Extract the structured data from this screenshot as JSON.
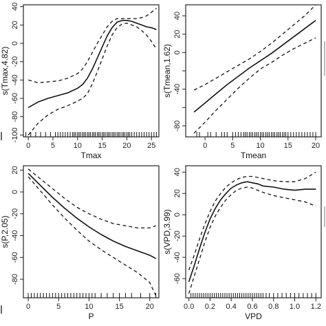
{
  "chart_data": [
    {
      "type": "line",
      "xlabel": "Tmax",
      "ylabel": "s(Tmax,4.82)",
      "xlim": [
        -1,
        26.5
      ],
      "ylim": [
        -102,
        42
      ],
      "xticks": [
        0,
        5,
        10,
        15,
        20,
        25
      ],
      "yticks": [
        -100,
        -80,
        -60,
        -40,
        -20,
        0,
        20,
        40
      ],
      "yticks_labeled": [
        -100,
        -80,
        -60,
        -40,
        -20,
        0,
        20,
        40
      ],
      "x": [
        0,
        2,
        4,
        6,
        8,
        10,
        11,
        12,
        13,
        14,
        15,
        16,
        17,
        18,
        19,
        20,
        21,
        22,
        23,
        24,
        25,
        26
      ],
      "series": [
        {
          "role": "fit",
          "values": [
            -70,
            -64,
            -60,
            -57,
            -54,
            -49,
            -45,
            -38,
            -28,
            -16,
            -4,
            8,
            17,
            23,
            25,
            25,
            24,
            22,
            20,
            18,
            17,
            15
          ]
        },
        {
          "role": "upper",
          "values": [
            -40,
            -43,
            -42,
            -41,
            -38,
            -33,
            -28,
            -20,
            -10,
            0,
            9,
            18,
            24,
            27,
            27,
            27,
            27,
            27,
            28,
            30,
            34,
            38
          ]
        },
        {
          "role": "lower",
          "values": [
            -100,
            -87,
            -78,
            -72,
            -68,
            -63,
            -60,
            -55,
            -44,
            -31,
            -17,
            -3,
            9,
            17,
            21,
            22,
            20,
            18,
            14,
            9,
            2,
            -6
          ]
        }
      ],
      "rug": [
        -0.5,
        0.5,
        1.5,
        2.5,
        3.5,
        4.5,
        5.5,
        6,
        6.5,
        7,
        7.5,
        8,
        8.5,
        9,
        9.3,
        9.6,
        10,
        10.3,
        10.6,
        11,
        11.3,
        11.6,
        12,
        12.3,
        12.6,
        13,
        13.3,
        13.6,
        14,
        14.3,
        14.6,
        15,
        15.3,
        15.6,
        16,
        16.3,
        16.6,
        17,
        17.3,
        17.6,
        18,
        18.3,
        18.6,
        19,
        19.3,
        19.6,
        20,
        20.3,
        20.6,
        21,
        21.5,
        22,
        22.5,
        23,
        23.5,
        24,
        24.5,
        25,
        25.5,
        26
      ]
    },
    {
      "type": "line",
      "xlabel": "Tmean",
      "ylabel": "s(Tmean,1.62)",
      "xlim": [
        -3.5,
        21
      ],
      "ylim": [
        -92,
        52
      ],
      "xticks": [
        0,
        5,
        10,
        15,
        20
      ],
      "yticks": [
        -80,
        -60,
        -40,
        -20,
        0,
        20,
        40
      ],
      "yticks_labeled": [
        -80,
        -40,
        0,
        20,
        40
      ],
      "x": [
        -2,
        0,
        2,
        4,
        6,
        8,
        10,
        12,
        14,
        16,
        18,
        20
      ],
      "series": [
        {
          "role": "fit",
          "values": [
            -65,
            -55,
            -45,
            -35,
            -26,
            -17,
            -9,
            -1,
            8,
            17,
            26,
            35
          ]
        },
        {
          "role": "upper",
          "values": [
            -41,
            -35,
            -28,
            -21,
            -14,
            -7,
            1,
            10,
            20,
            30,
            40,
            52
          ]
        },
        {
          "role": "lower",
          "values": [
            -88,
            -76,
            -63,
            -51,
            -39,
            -28,
            -18,
            -11,
            -3,
            4,
            10,
            16
          ]
        }
      ],
      "rug": [
        -1.5,
        -1,
        0.5,
        1,
        2,
        3,
        3.5,
        4,
        5,
        5.5,
        6,
        6.5,
        7,
        7.3,
        7.6,
        8,
        8.3,
        8.6,
        9,
        9.3,
        9.6,
        10,
        10.3,
        10.6,
        11,
        11.3,
        11.6,
        12,
        12.3,
        12.6,
        13,
        13.3,
        13.6,
        14,
        14.3,
        14.6,
        15,
        15.5,
        16,
        16.5,
        17,
        17.5,
        18,
        18.5,
        19,
        19.5,
        20
      ]
    },
    {
      "type": "line",
      "xlabel": "P",
      "ylabel": "s(P,2.05)",
      "xlim": [
        -0.8,
        21.5
      ],
      "ylim": [
        -97,
        24
      ],
      "xticks": [
        0,
        5,
        10,
        15,
        20
      ],
      "yticks": [
        -80,
        -60,
        -40,
        -20,
        0,
        20
      ],
      "yticks_labeled": [
        -80,
        -60,
        -40,
        -20,
        0,
        20
      ],
      "x": [
        0,
        2,
        4,
        6,
        8,
        10,
        12,
        14,
        16,
        18,
        20,
        21
      ],
      "series": [
        {
          "role": "fit",
          "values": [
            17,
            6,
            -5,
            -15,
            -24,
            -32,
            -39,
            -45,
            -50,
            -54,
            -58,
            -61
          ]
        },
        {
          "role": "upper",
          "values": [
            21,
            12,
            3,
            -6,
            -14,
            -20,
            -25,
            -29,
            -31,
            -33,
            -33,
            -31
          ]
        },
        {
          "role": "lower",
          "values": [
            14,
            1,
            -12,
            -24,
            -35,
            -45,
            -53,
            -60,
            -67,
            -74,
            -83,
            -95
          ]
        }
      ],
      "rug": [
        0,
        0.5,
        1,
        1.5,
        2,
        2.5,
        3,
        3.5,
        4,
        4.5,
        5,
        5.5,
        6,
        6.5,
        7,
        7.5,
        8,
        8.5,
        9,
        9.5,
        10,
        10.5,
        11,
        12,
        13,
        14,
        15,
        16,
        17,
        18.5,
        20,
        21
      ]
    },
    {
      "type": "line",
      "xlabel": "VPD",
      "ylabel": "s(VPD,3.99)",
      "xlim": [
        -0.03,
        1.25
      ],
      "ylim": [
        -78,
        46
      ],
      "xticks": [
        0.0,
        0.2,
        0.4,
        0.6,
        0.8,
        1.0,
        1.2
      ],
      "xtick_labels": [
        "0.0",
        "0.2",
        "0.4",
        "0.6",
        "0.8",
        "1.0",
        "1.2"
      ],
      "yticks": [
        -60,
        -40,
        -20,
        0,
        20,
        40
      ],
      "yticks_labeled": [
        -60,
        -40,
        -20,
        0,
        20,
        40
      ],
      "x": [
        0.0,
        0.05,
        0.1,
        0.15,
        0.2,
        0.25,
        0.3,
        0.35,
        0.4,
        0.45,
        0.5,
        0.55,
        0.6,
        0.65,
        0.7,
        0.8,
        0.9,
        1.0,
        1.1,
        1.2
      ],
      "series": [
        {
          "role": "fit",
          "values": [
            -63,
            -48,
            -32,
            -17,
            -4,
            6,
            14,
            20,
            25,
            28,
            30,
            31,
            30,
            29,
            27,
            26,
            24,
            23,
            24,
            24
          ]
        },
        {
          "role": "upper",
          "values": [
            -52,
            -38,
            -23,
            -9,
            3,
            13,
            20,
            26,
            30,
            33,
            35,
            36,
            36,
            35,
            34,
            32,
            31,
            31,
            34,
            40
          ]
        },
        {
          "role": "lower",
          "values": [
            -74,
            -58,
            -42,
            -26,
            -12,
            -1,
            7,
            14,
            19,
            23,
            25,
            26,
            25,
            23,
            21,
            18,
            16,
            14,
            12,
            8
          ]
        }
      ],
      "rug": [
        0.02,
        0.04,
        0.06,
        0.08,
        0.1,
        0.12,
        0.14,
        0.16,
        0.18,
        0.2,
        0.22,
        0.24,
        0.26,
        0.28,
        0.3,
        0.32,
        0.34,
        0.36,
        0.38,
        0.4,
        0.42,
        0.44,
        0.46,
        0.48,
        0.5,
        0.52,
        0.54,
        0.56,
        0.58,
        0.6,
        0.62,
        0.64,
        0.66,
        0.68,
        0.7,
        0.73,
        0.76,
        0.8,
        0.84,
        0.88,
        0.92,
        0.96,
        1.0,
        1.04,
        1.08,
        1.12,
        1.16,
        1.2
      ]
    }
  ]
}
